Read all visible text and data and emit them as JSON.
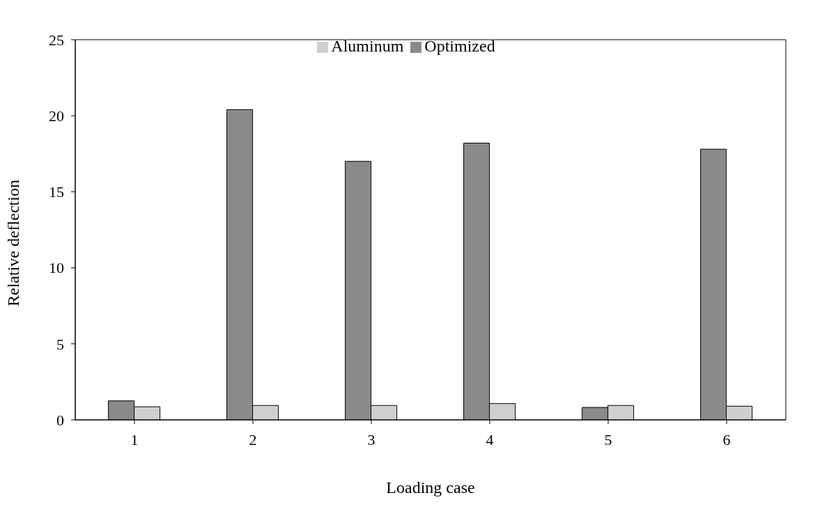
{
  "chart_data": {
    "type": "bar",
    "xlabel": "Loading case",
    "ylabel": "Relative deflection",
    "categories": [
      "1",
      "2",
      "3",
      "4",
      "5",
      "6"
    ],
    "series": [
      {
        "name": "Optimized",
        "color": "#8a8a8a",
        "values": [
          1.25,
          20.4,
          17.0,
          18.2,
          0.82,
          17.8
        ]
      },
      {
        "name": "Aluminum",
        "color": "#cfcfcf",
        "values": [
          0.86,
          0.95,
          0.95,
          1.07,
          0.95,
          0.9
        ]
      }
    ],
    "ylim": [
      0,
      25
    ],
    "yticks": [
      0,
      5,
      10,
      15,
      20,
      25
    ],
    "grid": false,
    "legend": "top"
  }
}
